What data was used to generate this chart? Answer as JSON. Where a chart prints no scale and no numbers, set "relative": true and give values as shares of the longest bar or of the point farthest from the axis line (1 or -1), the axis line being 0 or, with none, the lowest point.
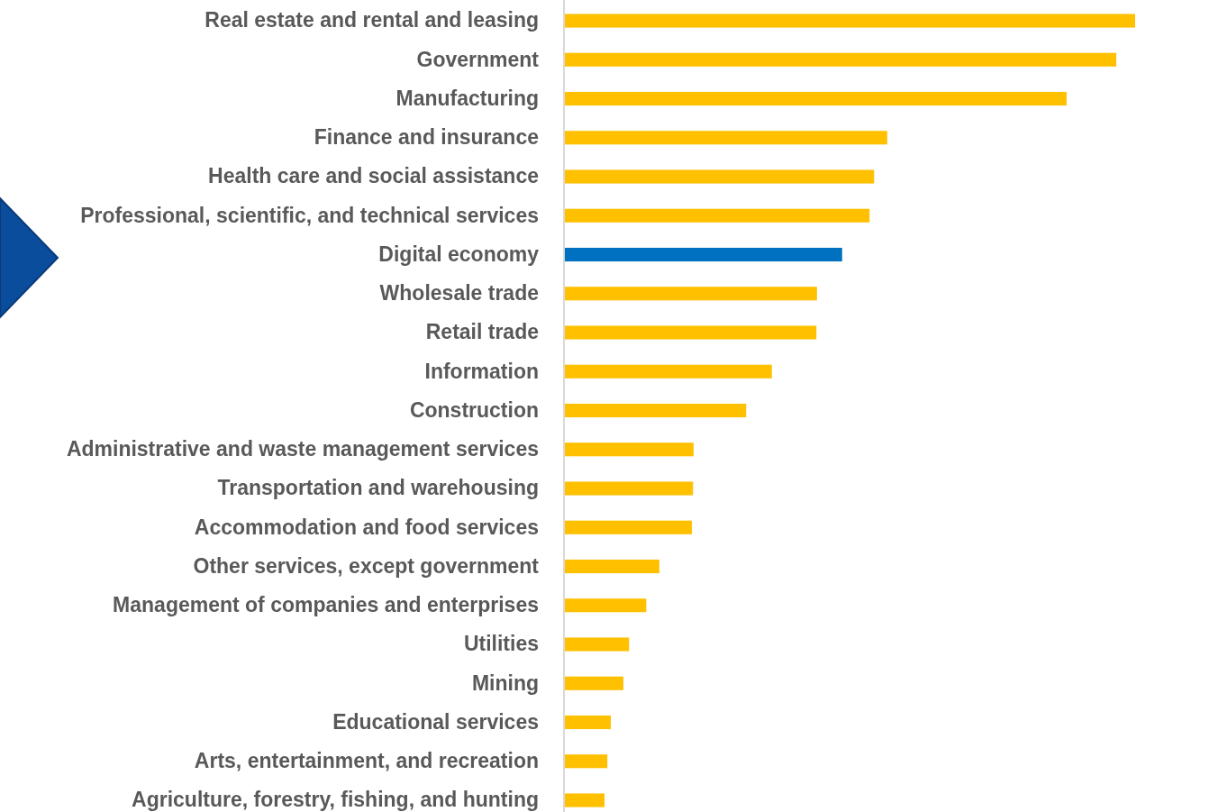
{
  "chart_data": {
    "type": "bar",
    "orientation": "horizontal",
    "relative": true,
    "categories": [
      "Real estate and rental and leasing",
      "Government",
      "Manufacturing",
      "Finance and insurance",
      "Health care and social assistance",
      "Professional, scientific, and technical services",
      "Digital economy",
      "Wholesale trade",
      "Retail trade",
      "Information",
      "Construction",
      "Administrative and waste management services",
      "Transportation and warehousing",
      "Accommodation and food services",
      "Other services, except government",
      "Management of companies and enterprises",
      "Utilities",
      "Mining",
      "Educational services",
      "Arts, entertainment, and recreation",
      "Agriculture, forestry, fishing, and hunting"
    ],
    "values": [
      1,
      0.967,
      0.88,
      0.566,
      0.543,
      0.535,
      0.487,
      0.443,
      0.442,
      0.364,
      0.319,
      0.227,
      0.226,
      0.224,
      0.167,
      0.144,
      0.114,
      0.104,
      0.082,
      0.076,
      0.071
    ],
    "colors": [
      "#ffc000",
      "#ffc000",
      "#ffc000",
      "#ffc000",
      "#ffc000",
      "#ffc000",
      "#0070c0",
      "#ffc000",
      "#ffc000",
      "#ffc000",
      "#ffc000",
      "#ffc000",
      "#ffc000",
      "#ffc000",
      "#ffc000",
      "#ffc000",
      "#ffc000",
      "#ffc000",
      "#ffc000",
      "#ffc000",
      "#ffc000"
    ]
  }
}
